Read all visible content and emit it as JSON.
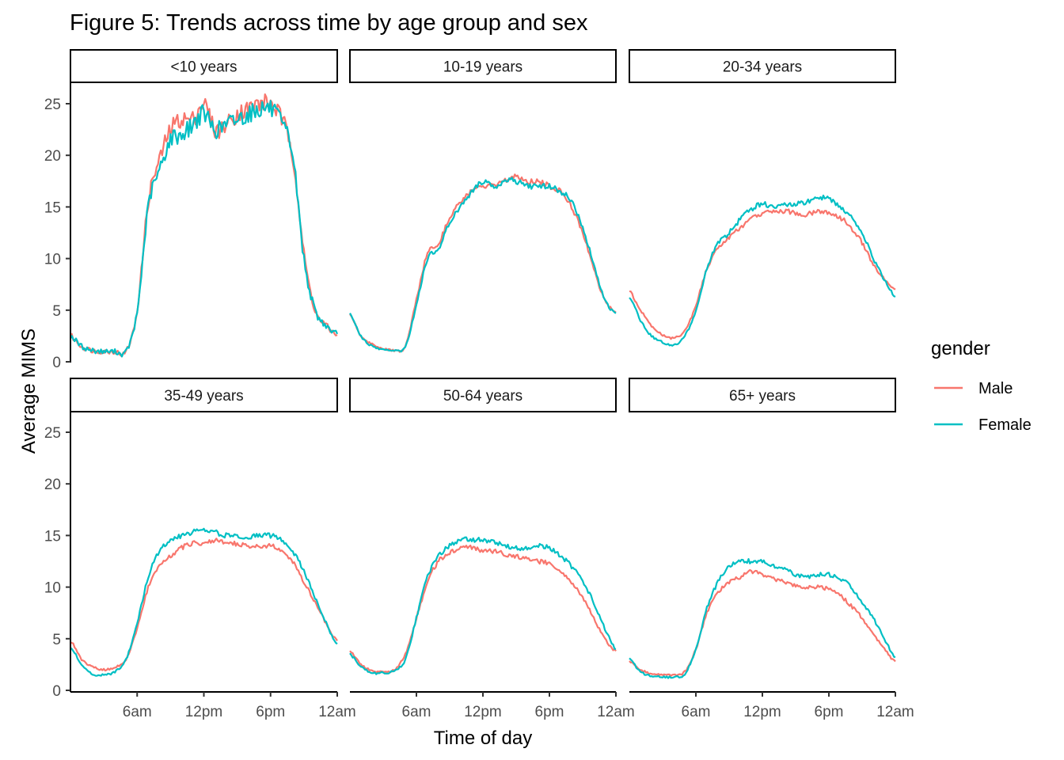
{
  "title": "Figure 5: Trends across time by age group and sex",
  "colors": {
    "Male": "#F8766D",
    "Female": "#00BFC4"
  },
  "chart_data": {
    "type": "line",
    "title": "Figure 5: Trends across time by age group and sex",
    "xlabel": "Time of day",
    "ylabel": "Average MIMS",
    "xlim": [
      0,
      24
    ],
    "ylim": [
      0,
      27
    ],
    "x_unit": "hours since midnight",
    "x_ticks": [
      {
        "value": 6,
        "label": "6am"
      },
      {
        "value": 12,
        "label": "12pm"
      },
      {
        "value": 18,
        "label": "6pm"
      },
      {
        "value": 24,
        "label": "12am"
      }
    ],
    "y_ticks": [
      0,
      5,
      10,
      15,
      20,
      25
    ],
    "legend": {
      "title": "gender",
      "position": "right",
      "entries": [
        "Male",
        "Female"
      ]
    },
    "x": [
      0,
      1,
      2,
      3,
      4,
      5,
      6,
      7,
      8,
      9,
      10,
      11,
      12,
      13,
      14,
      15,
      16,
      17,
      18,
      19,
      20,
      21,
      22,
      23,
      24
    ],
    "facets": [
      {
        "label": "<10 years",
        "series": [
          {
            "name": "Male",
            "values": [
              2.5,
              1.5,
              1.1,
              1.0,
              1.0,
              1.0,
              5.0,
              15.5,
              19.5,
              22.5,
              23.5,
              23.5,
              25.0,
              22.5,
              23.0,
              24.0,
              24.5,
              25.0,
              25.0,
              23.5,
              20.0,
              10.5,
              5.0,
              3.5,
              2.6
            ]
          },
          {
            "name": "Female",
            "values": [
              2.5,
              1.5,
              1.1,
              1.0,
              1.0,
              1.0,
              4.8,
              15.0,
              18.5,
              21.5,
              22.0,
              23.0,
              24.0,
              22.5,
              23.0,
              23.5,
              24.0,
              24.5,
              24.5,
              23.0,
              20.0,
              10.0,
              5.0,
              3.5,
              2.7
            ]
          }
        ]
      },
      {
        "label": "10-19 years",
        "series": [
          {
            "name": "Male",
            "values": [
              4.6,
              2.5,
              1.7,
              1.3,
              1.1,
              1.5,
              6.0,
              10.5,
              11.5,
              14.0,
              15.5,
              16.5,
              17.0,
              17.0,
              17.5,
              18.0,
              17.5,
              17.5,
              17.0,
              16.5,
              15.0,
              12.5,
              9.0,
              6.0,
              4.8
            ]
          },
          {
            "name": "Female",
            "values": [
              4.6,
              2.5,
              1.5,
              1.2,
              1.1,
              1.5,
              5.5,
              10.0,
              11.0,
              13.5,
              15.0,
              16.5,
              17.5,
              17.0,
              17.5,
              17.5,
              17.0,
              17.0,
              17.0,
              16.5,
              15.5,
              13.0,
              9.5,
              6.0,
              4.7
            ]
          }
        ]
      },
      {
        "label": "20-34 years",
        "series": [
          {
            "name": "Male",
            "values": [
              6.8,
              5.0,
              3.5,
              2.6,
              2.3,
              3.0,
              5.5,
              9.0,
              11.0,
              12.0,
              13.0,
              13.8,
              14.3,
              14.6,
              14.6,
              14.4,
              14.3,
              14.5,
              14.5,
              14.0,
              13.0,
              11.5,
              9.5,
              8.0,
              7.0
            ]
          },
          {
            "name": "Female",
            "values": [
              6.3,
              4.0,
              2.5,
              1.9,
              1.6,
              2.5,
              5.0,
              9.0,
              11.5,
              12.5,
              13.8,
              14.8,
              15.3,
              15.0,
              15.3,
              15.3,
              15.5,
              15.8,
              15.8,
              15.0,
              14.0,
              12.5,
              10.0,
              8.0,
              6.3
            ]
          }
        ]
      },
      {
        "label": "35-49 years",
        "series": [
          {
            "name": "Male",
            "values": [
              4.8,
              3.0,
              2.3,
              2.0,
              2.2,
              3.0,
              6.0,
              10.0,
              12.0,
              13.0,
              13.8,
              14.2,
              14.3,
              14.5,
              14.3,
              14.2,
              14.0,
              14.0,
              14.0,
              13.5,
              12.5,
              10.5,
              8.5,
              6.5,
              4.8
            ]
          },
          {
            "name": "Female",
            "values": [
              4.2,
              2.5,
              1.6,
              1.5,
              1.8,
              3.0,
              6.5,
              11.0,
              13.5,
              14.5,
              15.0,
              15.3,
              15.5,
              15.3,
              15.0,
              15.0,
              14.8,
              15.0,
              15.0,
              14.5,
              13.5,
              11.5,
              9.0,
              6.5,
              4.5
            ]
          }
        ]
      },
      {
        "label": "50-64 years",
        "series": [
          {
            "name": "Male",
            "values": [
              3.8,
              2.5,
              1.9,
              1.8,
              2.0,
              3.5,
              7.0,
              10.5,
              12.5,
              13.3,
              13.7,
              13.8,
              13.5,
              13.5,
              13.2,
              13.0,
              12.8,
              12.5,
              12.3,
              11.5,
              10.5,
              9.0,
              7.0,
              5.0,
              3.8
            ]
          },
          {
            "name": "Female",
            "values": [
              3.5,
              2.3,
              1.7,
              1.7,
              1.9,
              3.0,
              7.0,
              11.0,
              13.0,
              14.0,
              14.5,
              14.6,
              14.5,
              14.3,
              14.0,
              13.8,
              13.8,
              14.0,
              13.8,
              13.0,
              12.0,
              10.5,
              8.5,
              6.0,
              4.0
            ]
          }
        ]
      },
      {
        "label": "65+ years",
        "series": [
          {
            "name": "Male",
            "values": [
              2.8,
              2.0,
              1.6,
              1.5,
              1.5,
              1.8,
              4.0,
              7.5,
              9.5,
              10.5,
              11.0,
              11.5,
              11.2,
              10.8,
              10.5,
              10.2,
              10.0,
              10.0,
              9.8,
              9.2,
              8.2,
              7.0,
              5.5,
              4.0,
              2.8
            ]
          },
          {
            "name": "Female",
            "values": [
              3.0,
              1.8,
              1.4,
              1.3,
              1.3,
              1.6,
              4.0,
              8.0,
              10.5,
              12.0,
              12.5,
              12.5,
              12.5,
              12.0,
              11.8,
              11.2,
              11.0,
              11.2,
              11.2,
              10.8,
              10.0,
              8.5,
              7.0,
              5.0,
              3.2
            ]
          }
        ]
      }
    ]
  }
}
